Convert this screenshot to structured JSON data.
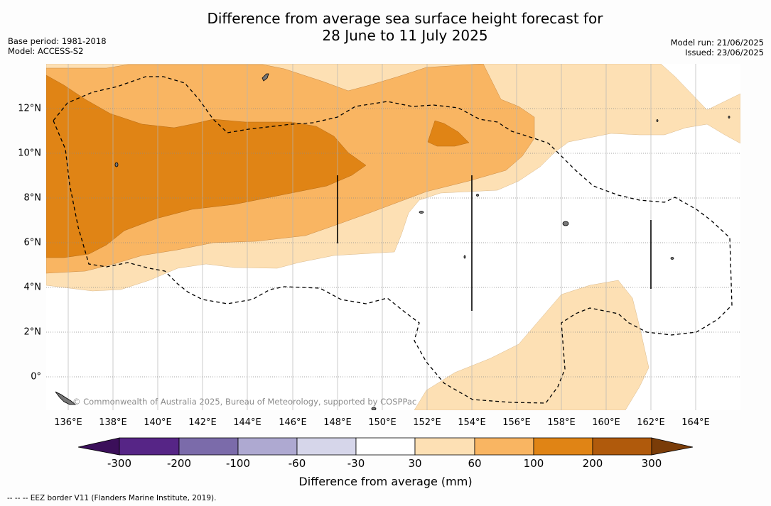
{
  "title_line1": "Difference from average sea surface height forecast for",
  "title_line2": "28 June to 11 July 2025",
  "base_period": "Base period: 1981-2018",
  "model": "Model: ACCESS-S2",
  "model_run": "Model run: 21/06/2025",
  "issued": "Issued: 23/06/2025",
  "credit": "© Commonwealth of Australia 2025, Bureau of Meteorology, supported by COSPPac",
  "lon_labels": [
    "136°E",
    "138°E",
    "140°E",
    "142°E",
    "144°E",
    "146°E",
    "148°E",
    "150°E",
    "152°E",
    "154°E",
    "156°E",
    "158°E",
    "160°E",
    "162°E",
    "164°E"
  ],
  "lat_labels": [
    "12°N",
    "10°N",
    "8°N",
    "6°N",
    "4°N",
    "2°N",
    "0°"
  ],
  "colorbar": {
    "label": "Difference from average (mm)",
    "ticks": [
      "-300",
      "-200",
      "-100",
      "-60",
      "-30",
      "30",
      "60",
      "100",
      "200",
      "300"
    ],
    "colors": [
      "#3b0f5a",
      "#562586",
      "#7b6baa",
      "#aea9d1",
      "#d6d6ea",
      "#ffffff",
      "#fde0b4",
      "#f9b562",
      "#e08415",
      "#b05a0c",
      "#7a3c08"
    ]
  },
  "footer": "--  --  -- EEZ border V11 (Flanders Marine Institute, 2019)."
}
